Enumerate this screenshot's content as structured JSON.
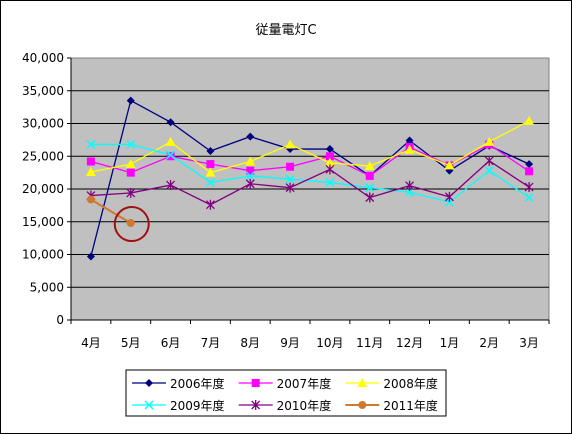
{
  "chart_data": {
    "type": "line",
    "title": "従量電灯C",
    "xlabel": "",
    "ylabel": "",
    "categories": [
      "4月",
      "5月",
      "6月",
      "7月",
      "8月",
      "9月",
      "10月",
      "11月",
      "12月",
      "1月",
      "2月",
      "3月"
    ],
    "ylim": [
      0,
      40000
    ],
    "yticks": [
      0,
      5000,
      10000,
      15000,
      20000,
      25000,
      30000,
      35000,
      40000
    ],
    "ytick_labels": [
      "0",
      "5,000",
      "10,000",
      "15,000",
      "20,000",
      "25,000",
      "30,000",
      "35,000",
      "40,000"
    ],
    "grid": true,
    "plot_background": "#c0c0c0",
    "legend_position": "bottom",
    "series": [
      {
        "name": "2006年度",
        "color": "#000080",
        "marker": "diamond",
        "values": [
          9700,
          33500,
          30200,
          25800,
          28000,
          26100,
          26100,
          22000,
          27400,
          22800,
          26600,
          23800
        ]
      },
      {
        "name": "2007年度",
        "color": "#ff00ff",
        "marker": "square",
        "values": [
          24200,
          22500,
          25000,
          23800,
          22800,
          23400,
          25000,
          22000,
          26400,
          23600,
          26800,
          22700
        ]
      },
      {
        "name": "2008年度",
        "color": "#ffff00",
        "marker": "triangle",
        "values": [
          22600,
          23800,
          27200,
          22500,
          24200,
          26800,
          24000,
          23500,
          26000,
          23600,
          27200,
          30400
        ]
      },
      {
        "name": "2009年度",
        "color": "#00ffff",
        "marker": "x",
        "values": [
          26800,
          26800,
          25200,
          21000,
          22000,
          21500,
          21000,
          20200,
          19500,
          18000,
          22800,
          18700
        ]
      },
      {
        "name": "2010年度",
        "color": "#800080",
        "marker": "star",
        "values": [
          19000,
          19400,
          20600,
          17600,
          20800,
          20200,
          23000,
          18700,
          20500,
          18800,
          24300,
          20300
        ]
      },
      {
        "name": "2011年度",
        "color": "#d07830",
        "marker": "circle",
        "values": [
          18400,
          14800,
          null,
          null,
          null,
          null,
          null,
          null,
          null,
          null,
          null,
          null
        ]
      }
    ],
    "annotations": [
      {
        "type": "circle",
        "category": "5月",
        "value": 14800,
        "color": "#a01010"
      }
    ]
  }
}
